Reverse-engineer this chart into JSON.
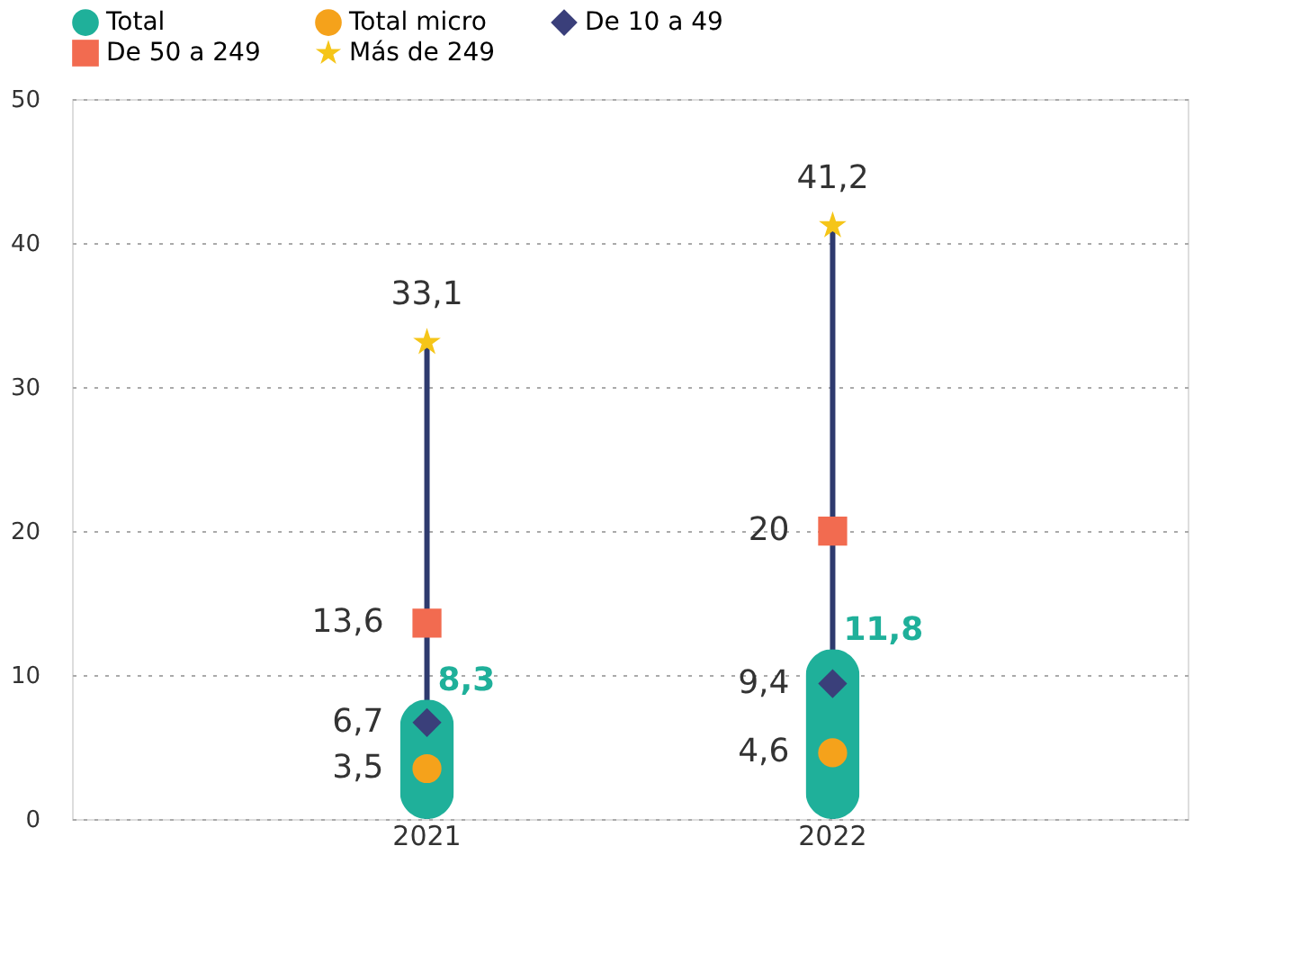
{
  "chart_data": {
    "type": "bar",
    "categories": [
      "2021",
      "2022"
    ],
    "series": [
      {
        "name": "Total",
        "color": "#1fb09a",
        "values": [
          8.3,
          11.8
        ],
        "value_labels": [
          "8,3",
          "11,8"
        ]
      },
      {
        "name": "Total micro",
        "type": "scatter",
        "marker": "circle",
        "color": "#f5a21b",
        "values": [
          3.5,
          4.6
        ],
        "value_labels": [
          "3,5",
          "4,6"
        ]
      },
      {
        "name": "De 10 a 49",
        "type": "scatter",
        "marker": "diamond",
        "color": "#3a3f7a",
        "values": [
          6.7,
          9.4
        ],
        "value_labels": [
          "6,7",
          "9,4"
        ]
      },
      {
        "name": "De 50 a 249",
        "type": "scatter",
        "marker": "square",
        "color": "#f26b50",
        "values": [
          13.6,
          20
        ],
        "value_labels": [
          "13,6",
          "20"
        ]
      },
      {
        "name": "Más de 249",
        "type": "scatter",
        "marker": "star",
        "color": "#f5c518",
        "values": [
          33.1,
          41.2
        ],
        "value_labels": [
          "33,1",
          "41,2"
        ]
      }
    ],
    "ylim": [
      0,
      50
    ],
    "yticks": [
      0,
      10,
      20,
      30,
      40,
      50
    ],
    "grid": "y",
    "legend": "top left"
  }
}
